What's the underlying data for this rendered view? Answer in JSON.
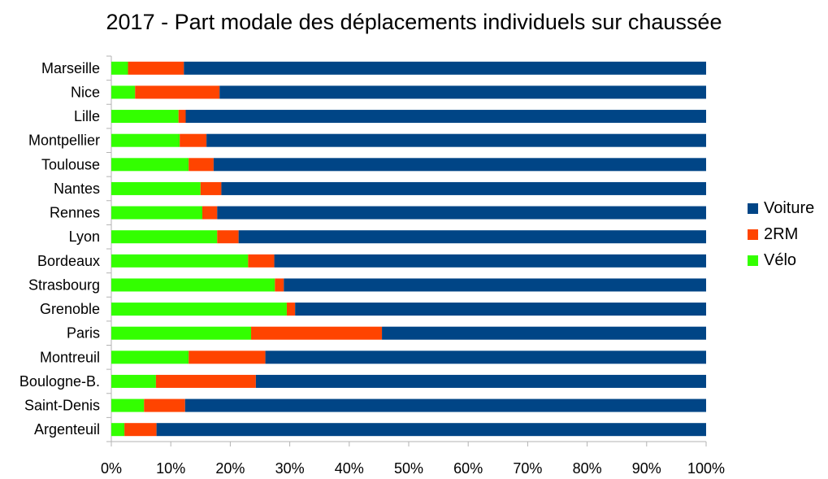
{
  "chart_data": {
    "type": "bar",
    "orientation": "horizontal",
    "stacked": true,
    "title": "2017 - Part modale des déplacements individuels sur chaussée",
    "categories": [
      "Marseille",
      "Nice",
      "Lille",
      "Montpellier",
      "Toulouse",
      "Nantes",
      "Rennes",
      "Lyon",
      "Bordeaux",
      "Strasbourg",
      "Grenoble",
      "Paris",
      "Montreuil",
      "Boulogne-B.",
      "Saint-Denis",
      "Argenteuil"
    ],
    "series": [
      {
        "name": "Vélo",
        "color": "#33ff00",
        "values": [
          2.8,
          4.0,
          11.3,
          11.5,
          13.0,
          15.0,
          15.3,
          17.8,
          23.0,
          27.5,
          29.5,
          23.5,
          13.0,
          7.5,
          5.5,
          2.2
        ]
      },
      {
        "name": "2RM",
        "color": "#ff4400",
        "values": [
          9.4,
          14.2,
          1.2,
          4.5,
          4.2,
          3.5,
          2.5,
          3.6,
          4.4,
          1.5,
          1.4,
          22.0,
          12.9,
          16.8,
          6.9,
          5.4
        ]
      },
      {
        "name": "Voiture",
        "color": "#004586",
        "values": [
          87.8,
          81.8,
          87.5,
          84.0,
          82.8,
          81.5,
          82.2,
          78.6,
          72.6,
          71.0,
          69.1,
          54.5,
          74.1,
          75.7,
          87.6,
          92.4
        ]
      }
    ],
    "xlim": [
      0,
      100
    ],
    "x_ticks": [
      "0%",
      "10%",
      "20%",
      "30%",
      "40%",
      "50%",
      "60%",
      "70%",
      "80%",
      "90%",
      "100%"
    ],
    "legend": {
      "position": "right",
      "items": [
        {
          "label": "Voiture",
          "color": "#004586"
        },
        {
          "label": "2RM",
          "color": "#ff4400"
        },
        {
          "label": "Vélo",
          "color": "#33ff00"
        }
      ]
    },
    "grid": false
  }
}
